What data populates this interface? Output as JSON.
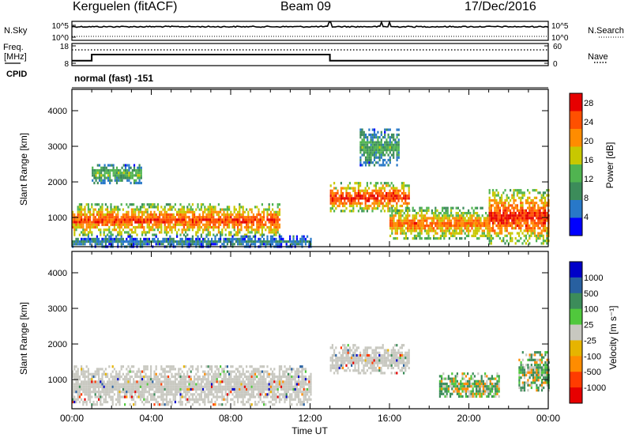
{
  "header": {
    "station": "Kerguelen (fitACF)",
    "beam": "Beam 09",
    "date": "17/Dec/2016"
  },
  "labels": {
    "nsky": "N.Sky",
    "nsearch": "N.Search",
    "freq": "Freq.",
    "mhz": "[MHz]",
    "cpid": "CPID",
    "nave": "Nave",
    "mode": "normal (fast) -151",
    "time_axis": "Time UT",
    "slant_range": "Slant Range [km]",
    "power_label": "Power [dB]",
    "velocity_label": "Velocity [m s⁻¹]"
  },
  "colors": {
    "frame": "#000000",
    "ground_scatter": "#c8c8c0"
  },
  "chart_data": [
    {
      "type": "line",
      "title": "Noise (N.Sky / N.Search)",
      "yticks_left": [
        "10^5",
        "10^0"
      ],
      "yticks_right": [
        "10^5",
        "10^0"
      ],
      "x": [
        "00:00",
        "04:00",
        "08:00",
        "12:00",
        "16:00",
        "20:00",
        "00:00"
      ],
      "note": "flat near 10^5 with small spikes near 13:00 and 16:00"
    },
    {
      "type": "line",
      "title": "Frequency / Nave",
      "yticks_left": [
        18,
        8
      ],
      "yticks_right": [
        60,
        0
      ],
      "ylim_left": [
        8,
        18
      ],
      "ylim_right": [
        0,
        60
      ],
      "series": [
        {
          "name": "Freq.",
          "x": [
            "00:00",
            "01:00",
            "01:00",
            "13:00",
            "13:00",
            "24:00"
          ],
          "values": [
            9.5,
            9.5,
            13,
            13,
            9.5,
            9.5
          ]
        },
        {
          "name": "Nave",
          "x": [
            "00:00",
            "24:00"
          ],
          "values": [
            46,
            46
          ]
        }
      ]
    },
    {
      "type": "heatmap",
      "title": "Power",
      "xlabel": "",
      "ylabel": "Slant Range [km]",
      "x_ticks": [
        "00:00",
        "04:00",
        "08:00",
        "12:00",
        "16:00",
        "20:00",
        "00:00"
      ],
      "y_ticks": [
        1000,
        2000,
        3000,
        4000
      ],
      "ylim": [
        180,
        4600
      ],
      "colorbar": {
        "label": "Power [dB]",
        "ticks": [
          4,
          8,
          12,
          16,
          20,
          24,
          28
        ],
        "range": [
          0,
          30
        ],
        "colors": [
          "#0000ff",
          "#2878c8",
          "#3c8c5a",
          "#50b450",
          "#c8c800",
          "#ff8c00",
          "#ff5000",
          "#e60000"
        ]
      },
      "regions": [
        {
          "start": 0.0,
          "end": 10.5,
          "low": 500,
          "high": 1400,
          "dB": 24
        },
        {
          "start": 0.0,
          "end": 12.0,
          "low": 200,
          "high": 500,
          "dB": 6
        },
        {
          "start": 1.0,
          "end": 3.5,
          "low": 2000,
          "high": 2500,
          "dB": 12
        },
        {
          "start": 13.0,
          "end": 17.0,
          "low": 1200,
          "high": 2000,
          "dB": 26
        },
        {
          "start": 14.5,
          "end": 16.5,
          "low": 2500,
          "high": 3500,
          "dB": 10
        },
        {
          "start": 16.0,
          "end": 21.0,
          "low": 400,
          "high": 1300,
          "dB": 22
        },
        {
          "start": 21.0,
          "end": 24.0,
          "low": 300,
          "high": 1800,
          "dB": 26
        }
      ]
    },
    {
      "type": "heatmap",
      "title": "Velocity",
      "xlabel": "Time UT",
      "ylabel": "Slant Range [km]",
      "x_ticks": [
        "00:00",
        "04:00",
        "08:00",
        "12:00",
        "16:00",
        "20:00",
        "00:00"
      ],
      "y_ticks": [
        1000,
        2000,
        3000,
        4000
      ],
      "ylim": [
        180,
        4600
      ],
      "colorbar": {
        "label": "Velocity [m s⁻¹]",
        "ticks": [
          1000,
          500,
          100,
          25,
          -25,
          -100,
          -500,
          -1000
        ],
        "colors": [
          "#0000c8",
          "#2860a0",
          "#3c8c5a",
          "#50c83c",
          "#c8c8c0",
          "#e6b400",
          "#ff8c00",
          "#ff3c00",
          "#e60000"
        ]
      },
      "regions": [
        {
          "start": 0.0,
          "end": 12.0,
          "low": 300,
          "high": 1400,
          "v": 0
        },
        {
          "start": 13.0,
          "end": 17.0,
          "low": 1200,
          "high": 2000,
          "v": 0
        },
        {
          "start": 18.5,
          "end": 21.5,
          "low": 500,
          "high": 1200,
          "v": 300
        },
        {
          "start": 22.5,
          "end": 24.0,
          "low": 700,
          "high": 1800,
          "v": 300
        }
      ]
    }
  ]
}
